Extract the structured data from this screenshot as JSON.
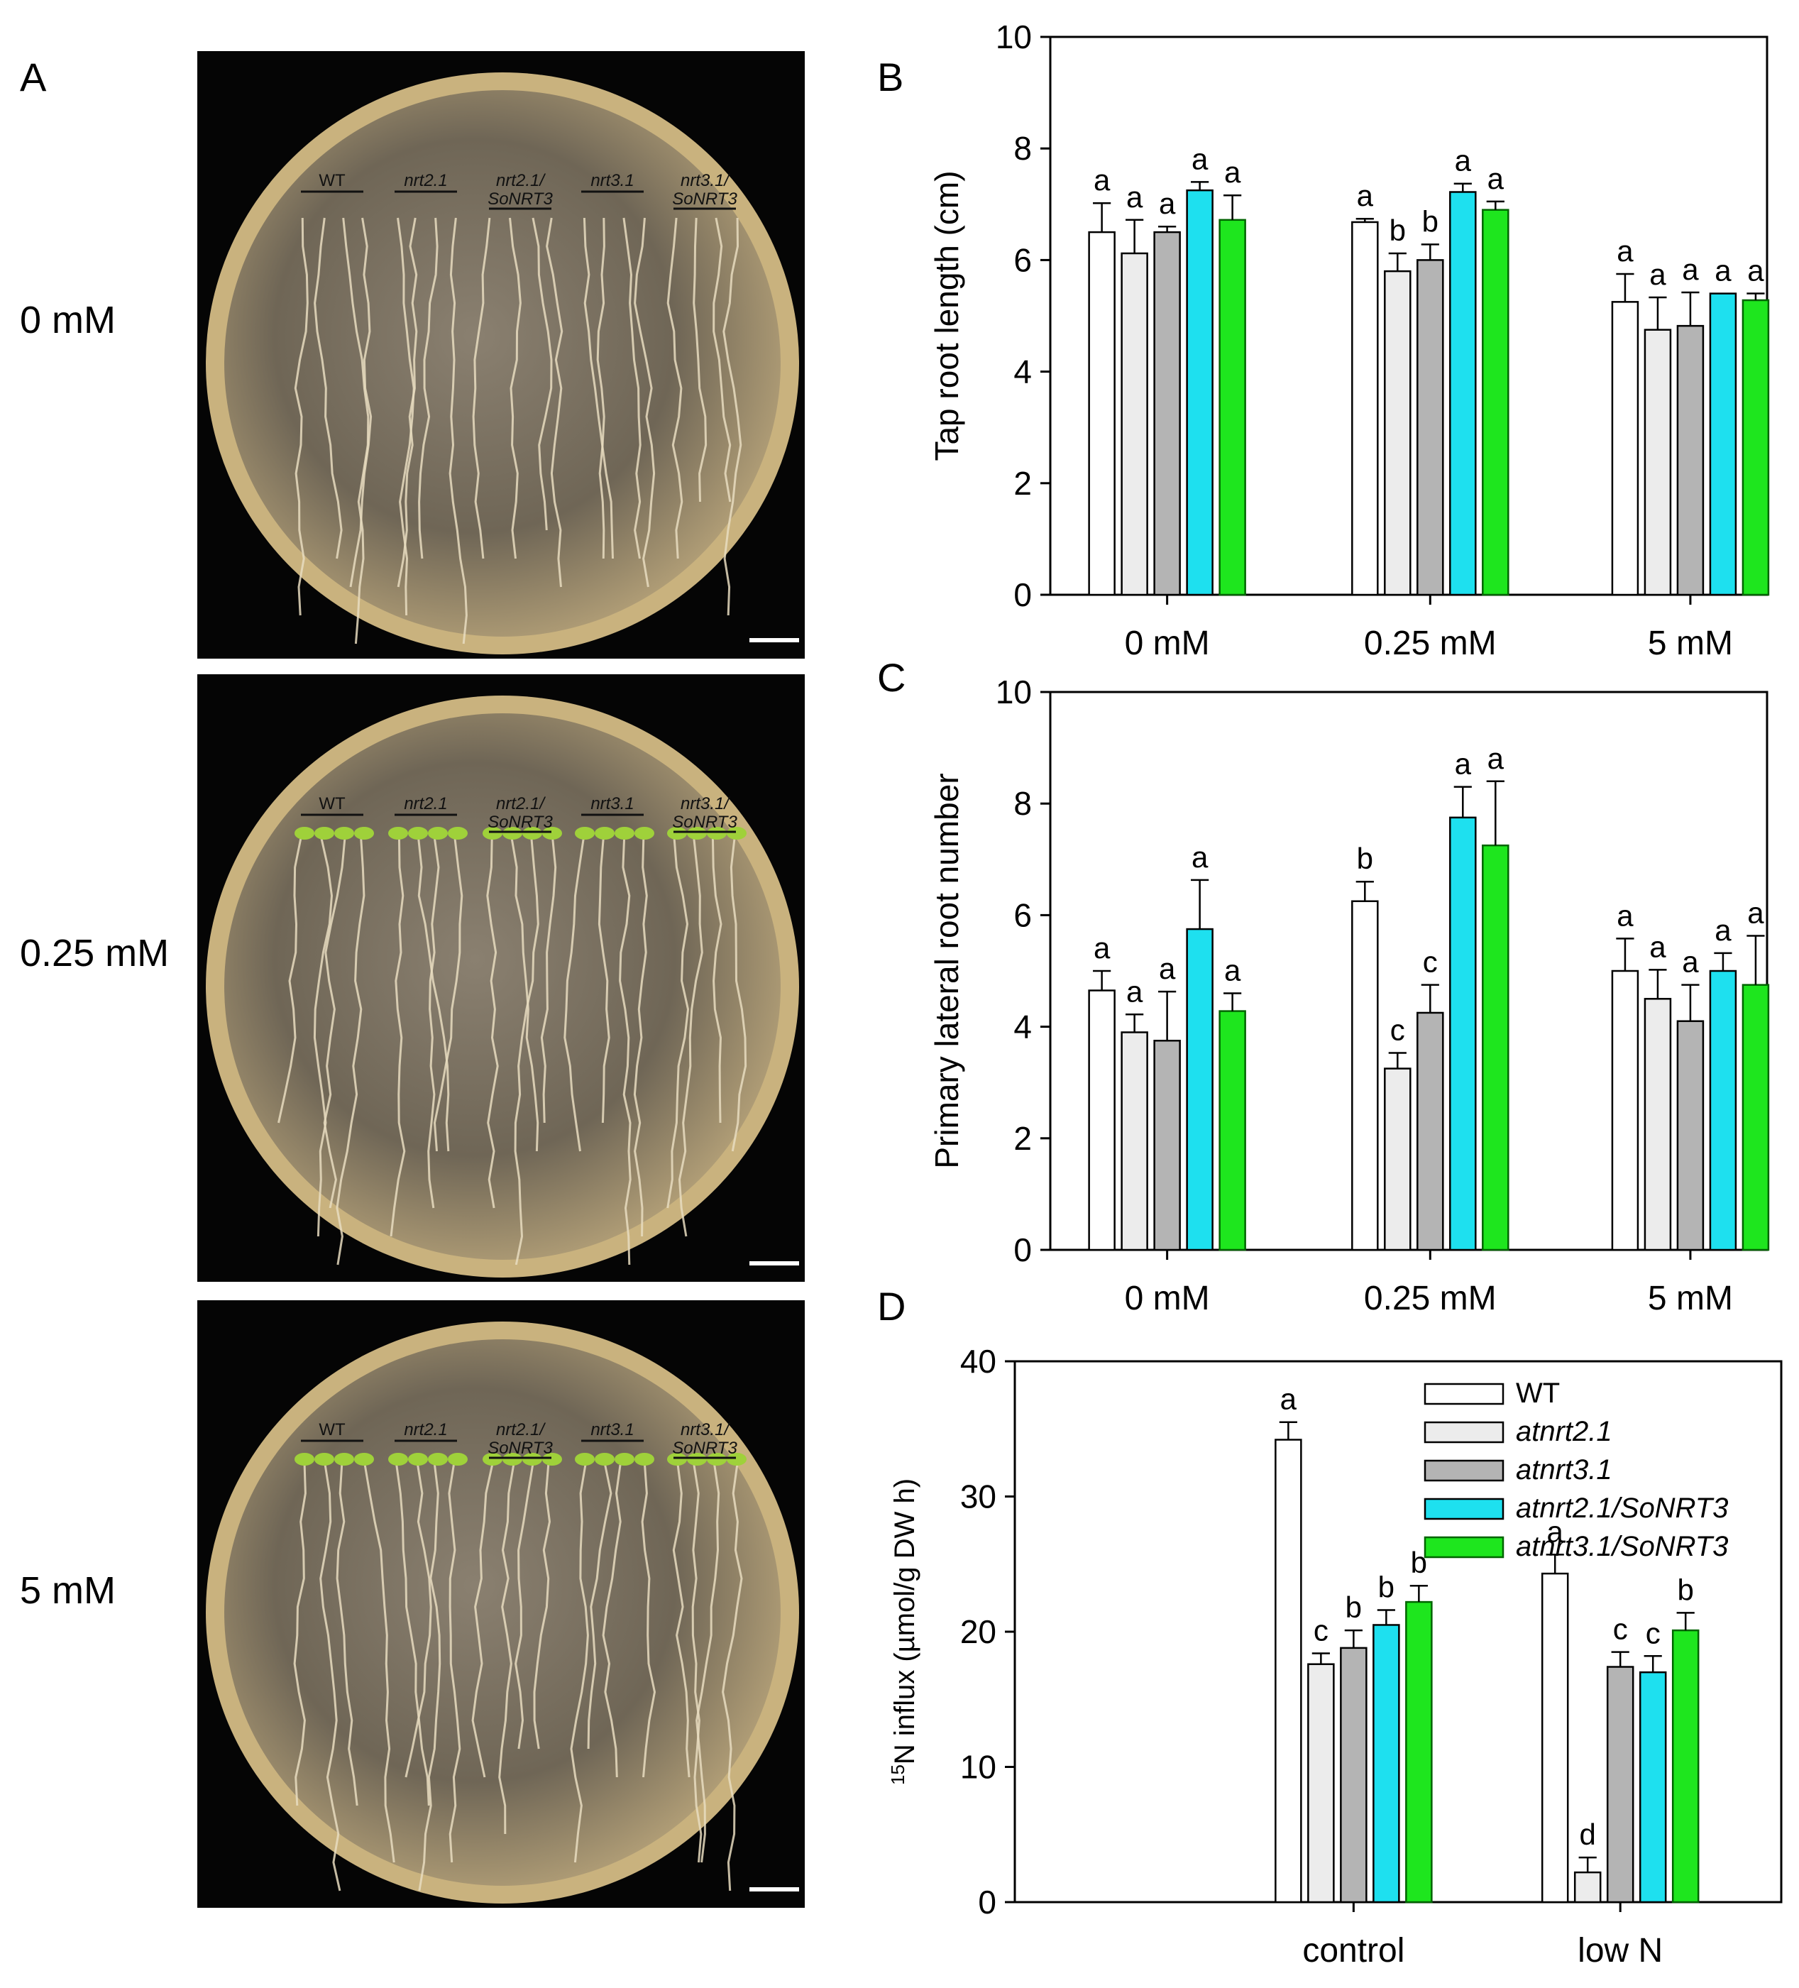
{
  "panel_labels": {
    "a": "A",
    "b": "B",
    "c": "C",
    "d": "D"
  },
  "row_labels": [
    "0 mM",
    "0.25 mM",
    "5 mM"
  ],
  "plate_lanes": [
    {
      "line1": "WT",
      "line2": ""
    },
    {
      "line1": "nrt2.1",
      "line2": ""
    },
    {
      "line1": "nrt2.1/",
      "line2": "SoNRT3"
    },
    {
      "line1": "nrt3.1",
      "line2": ""
    },
    {
      "line1": "nrt3.1/",
      "line2": "SoNRT3"
    }
  ],
  "colors": {
    "WT": "#ffffff",
    "atnrt2.1": "#ececec",
    "atnrt3.1": "#b4b4b4",
    "atnrt2.1/SoNRT3": "#1ee0ef",
    "atnrt3.1/SoNRT3": "#1ee61e"
  },
  "chart_data": [
    {
      "type": "bar",
      "id": "B",
      "title": "",
      "ylabel": "Tap root length (cm)",
      "xlabel": "",
      "ylim": [
        0,
        10
      ],
      "yticks": [
        0,
        2,
        4,
        6,
        8,
        10
      ],
      "categories": [
        "0 mM",
        "0.25 mM",
        "5 mM"
      ],
      "series": [
        {
          "name": "WT",
          "values": [
            6.5,
            6.68,
            5.25
          ],
          "errors": [
            0.52,
            0.06,
            0.5
          ],
          "letters": [
            "a",
            "a",
            "a"
          ]
        },
        {
          "name": "atnrt2.1",
          "values": [
            6.12,
            5.8,
            4.75
          ],
          "errors": [
            0.6,
            0.32,
            0.58
          ],
          "letters": [
            "a",
            "b",
            "a"
          ]
        },
        {
          "name": "atnrt3.1",
          "values": [
            6.5,
            6.0,
            4.82
          ],
          "errors": [
            0.1,
            0.28,
            0.6
          ],
          "letters": [
            "a",
            "b",
            "a"
          ]
        },
        {
          "name": "atnrt2.1/SoNRT3",
          "values": [
            7.25,
            7.22,
            5.4
          ],
          "errors": [
            0.15,
            0.15,
            0.0
          ],
          "letters": [
            "a",
            "a",
            "a"
          ]
        },
        {
          "name": "atnrt3.1/SoNRT3",
          "values": [
            6.72,
            6.9,
            5.28
          ],
          "errors": [
            0.44,
            0.15,
            0.12
          ],
          "letters": [
            "a",
            "a",
            "a"
          ]
        }
      ]
    },
    {
      "type": "bar",
      "id": "C",
      "title": "",
      "ylabel": "Primary lateral root number",
      "xlabel": "",
      "ylim": [
        0,
        10
      ],
      "yticks": [
        0,
        2,
        4,
        6,
        8,
        10
      ],
      "categories": [
        "0 mM",
        "0.25 mM",
        "5 mM"
      ],
      "series": [
        {
          "name": "WT",
          "values": [
            4.65,
            6.25,
            5.0
          ],
          "errors": [
            0.35,
            0.35,
            0.58
          ],
          "letters": [
            "a",
            "b",
            "a"
          ]
        },
        {
          "name": "atnrt2.1",
          "values": [
            3.9,
            3.25,
            4.5
          ],
          "errors": [
            0.32,
            0.28,
            0.52
          ],
          "letters": [
            "a",
            "c",
            "a"
          ]
        },
        {
          "name": "atnrt3.1",
          "values": [
            3.75,
            4.25,
            4.1
          ],
          "errors": [
            0.88,
            0.5,
            0.65
          ],
          "letters": [
            "a",
            "c",
            "a"
          ]
        },
        {
          "name": "atnrt2.1/SoNRT3",
          "values": [
            5.75,
            7.75,
            5.0
          ],
          "errors": [
            0.88,
            0.55,
            0.32
          ],
          "letters": [
            "a",
            "a",
            "a"
          ]
        },
        {
          "name": "atnrt3.1/SoNRT3",
          "values": [
            4.28,
            7.25,
            4.75
          ],
          "errors": [
            0.32,
            1.15,
            0.88
          ],
          "letters": [
            "a",
            "a",
            "a"
          ]
        }
      ]
    },
    {
      "type": "bar",
      "id": "D",
      "title": "",
      "ylabel": "15N influx  (µmol/g DW h)",
      "ylabel_sup": "15",
      "ylabel_main": "N influx  (µmol/g DW h)",
      "xlabel": "",
      "ylim": [
        0,
        40
      ],
      "yticks": [
        0,
        10,
        20,
        30,
        40
      ],
      "categories": [
        "control",
        "low N"
      ],
      "legend_position": "top-right",
      "series": [
        {
          "name": "WT",
          "values": [
            34.2,
            24.3
          ],
          "errors": [
            1.3,
            1.4
          ],
          "letters": [
            "a",
            "a"
          ]
        },
        {
          "name": "atnrt2.1",
          "values": [
            17.6,
            2.2
          ],
          "errors": [
            0.8,
            1.1
          ],
          "letters": [
            "c",
            "d"
          ]
        },
        {
          "name": "atnrt3.1",
          "values": [
            18.8,
            17.4
          ],
          "errors": [
            1.3,
            1.1
          ],
          "letters": [
            "b",
            "c"
          ]
        },
        {
          "name": "atnrt2.1/SoNRT3",
          "values": [
            20.5,
            17.0
          ],
          "errors": [
            1.1,
            1.2
          ],
          "letters": [
            "b",
            "c"
          ]
        },
        {
          "name": "atnrt3.1/SoNRT3",
          "values": [
            22.2,
            20.1
          ],
          "errors": [
            1.2,
            1.3
          ],
          "letters": [
            "b",
            "b"
          ]
        }
      ]
    }
  ]
}
